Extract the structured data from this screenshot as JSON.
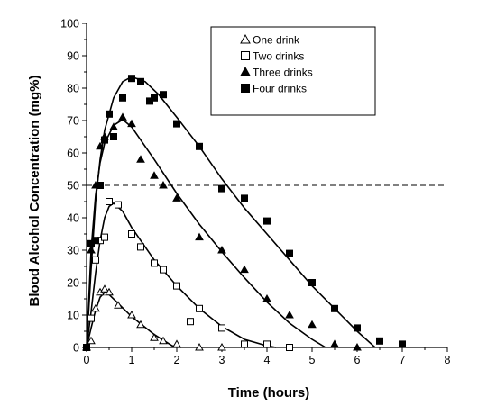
{
  "chart_data": {
    "type": "scatter",
    "title": "",
    "xlabel": "Time (hours)",
    "ylabel": "Blood Alcohol Concentration (mg%)",
    "xlim": [
      0,
      8
    ],
    "ylim": [
      0,
      100
    ],
    "x_ticks": [
      0,
      1,
      2,
      3,
      4,
      5,
      6,
      7,
      8
    ],
    "y_ticks": [
      0,
      10,
      20,
      30,
      40,
      50,
      60,
      70,
      80,
      90,
      100
    ],
    "grid": false,
    "legend_position": "top-right",
    "reference_line": {
      "y": 50,
      "style": "dashed"
    },
    "series": [
      {
        "name": "One drink",
        "marker": "open-triangle",
        "points": [
          [
            0,
            0
          ],
          [
            0.1,
            2
          ],
          [
            0.2,
            12
          ],
          [
            0.3,
            17
          ],
          [
            0.4,
            18
          ],
          [
            0.5,
            17
          ],
          [
            0.7,
            13
          ],
          [
            1.0,
            10
          ],
          [
            1.2,
            7
          ],
          [
            1.5,
            3
          ],
          [
            1.7,
            2
          ],
          [
            2.0,
            1
          ],
          [
            2.5,
            0
          ],
          [
            3.0,
            0
          ]
        ],
        "fit": [
          [
            0,
            0
          ],
          [
            0.1,
            6
          ],
          [
            0.2,
            11.5
          ],
          [
            0.3,
            15.5
          ],
          [
            0.4,
            17
          ],
          [
            0.5,
            16.3
          ],
          [
            1.0,
            9.5
          ],
          [
            1.5,
            4
          ],
          [
            1.9,
            0.5
          ],
          [
            2.1,
            0
          ]
        ]
      },
      {
        "name": "Two drinks",
        "marker": "open-square",
        "points": [
          [
            0,
            0
          ],
          [
            0.1,
            9
          ],
          [
            0.2,
            27
          ],
          [
            0.3,
            33
          ],
          [
            0.4,
            34
          ],
          [
            0.5,
            45
          ],
          [
            0.7,
            44
          ],
          [
            1.0,
            35
          ],
          [
            1.2,
            31
          ],
          [
            1.5,
            26
          ],
          [
            1.7,
            24
          ],
          [
            2.0,
            19
          ],
          [
            2.3,
            8
          ],
          [
            2.5,
            12
          ],
          [
            3.0,
            6
          ],
          [
            3.5,
            1
          ],
          [
            4.0,
            1
          ],
          [
            4.5,
            0
          ]
        ],
        "fit": [
          [
            0,
            0
          ],
          [
            0.1,
            11
          ],
          [
            0.2,
            23
          ],
          [
            0.3,
            33
          ],
          [
            0.4,
            40
          ],
          [
            0.5,
            43.5
          ],
          [
            0.6,
            44.5
          ],
          [
            0.8,
            42
          ],
          [
            1.0,
            37
          ],
          [
            1.5,
            27
          ],
          [
            2.0,
            19
          ],
          [
            2.5,
            12
          ],
          [
            3.0,
            6.5
          ],
          [
            3.5,
            2.5
          ],
          [
            4.0,
            0.5
          ],
          [
            4.2,
            0
          ]
        ]
      },
      {
        "name": "Three drinks",
        "marker": "filled-triangle",
        "points": [
          [
            0,
            0
          ],
          [
            0.1,
            30
          ],
          [
            0.2,
            50
          ],
          [
            0.3,
            62
          ],
          [
            0.4,
            65
          ],
          [
            0.6,
            68
          ],
          [
            0.8,
            71
          ],
          [
            1.0,
            69
          ],
          [
            1.2,
            58
          ],
          [
            1.5,
            53
          ],
          [
            1.7,
            50
          ],
          [
            2.0,
            46
          ],
          [
            2.5,
            34
          ],
          [
            3.0,
            30
          ],
          [
            3.5,
            24
          ],
          [
            4.0,
            15
          ],
          [
            4.5,
            10
          ],
          [
            5.0,
            7
          ],
          [
            5.5,
            1
          ],
          [
            6.0,
            0
          ]
        ],
        "fit": [
          [
            0,
            0
          ],
          [
            0.1,
            30
          ],
          [
            0.2,
            47
          ],
          [
            0.3,
            57
          ],
          [
            0.4,
            63
          ],
          [
            0.6,
            68.5
          ],
          [
            0.8,
            70.3
          ],
          [
            1.0,
            68
          ],
          [
            1.5,
            58
          ],
          [
            2.0,
            47.5
          ],
          [
            2.5,
            38
          ],
          [
            3.0,
            29.5
          ],
          [
            3.5,
            21.5
          ],
          [
            4.0,
            14
          ],
          [
            4.5,
            7.5
          ],
          [
            5.0,
            2.5
          ],
          [
            5.3,
            0
          ]
        ]
      },
      {
        "name": "Four drinks",
        "marker": "filled-square",
        "points": [
          [
            0,
            0
          ],
          [
            0.1,
            32
          ],
          [
            0.2,
            33
          ],
          [
            0.3,
            50
          ],
          [
            0.4,
            64
          ],
          [
            0.5,
            72
          ],
          [
            0.6,
            65
          ],
          [
            0.8,
            77
          ],
          [
            1.0,
            83
          ],
          [
            1.2,
            82
          ],
          [
            1.4,
            76
          ],
          [
            1.5,
            77
          ],
          [
            1.7,
            78
          ],
          [
            2.0,
            69
          ],
          [
            2.5,
            62
          ],
          [
            3.0,
            49
          ],
          [
            3.5,
            46
          ],
          [
            4.0,
            39
          ],
          [
            4.5,
            29
          ],
          [
            5.0,
            20
          ],
          [
            5.5,
            12
          ],
          [
            6.0,
            6
          ],
          [
            6.5,
            2
          ],
          [
            7.0,
            1
          ]
        ],
        "fit": [
          [
            0,
            0
          ],
          [
            0.1,
            24
          ],
          [
            0.2,
            45
          ],
          [
            0.3,
            58
          ],
          [
            0.4,
            67
          ],
          [
            0.6,
            77
          ],
          [
            0.8,
            82
          ],
          [
            1.0,
            83.5
          ],
          [
            1.3,
            82
          ],
          [
            1.6,
            78
          ],
          [
            2.0,
            71
          ],
          [
            2.5,
            62
          ],
          [
            3.0,
            52
          ],
          [
            3.5,
            43
          ],
          [
            4.0,
            35
          ],
          [
            4.5,
            27
          ],
          [
            5.0,
            19
          ],
          [
            5.5,
            12
          ],
          [
            6.0,
            5
          ],
          [
            6.4,
            0
          ]
        ]
      }
    ]
  }
}
